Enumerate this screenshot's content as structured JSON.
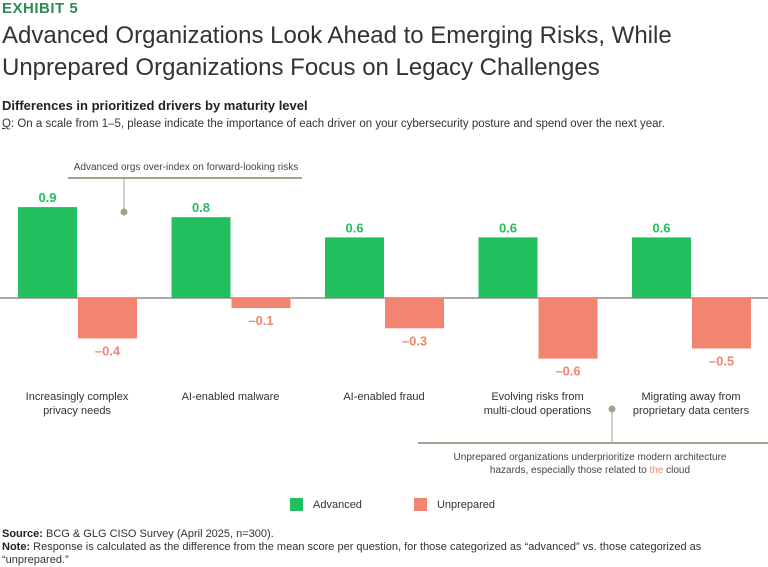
{
  "exhibit": "EXHIBIT 5",
  "title_line1": "Advanced Organizations Look Ahead to Emerging Risks, While",
  "title_line2": "Unprepared Organizations Focus on Legacy Challenges",
  "subtitle": "Differences in prioritized drivers by maturity level",
  "question_prefix": "Q",
  "question_text": ": On a scale from 1–5, please indicate the importance of each driver on your cybersecurity posture and spend over the next year.",
  "annotation_top": "Advanced orgs over-index on forward-looking risks",
  "annotation_bottom_line1": "Unprepared organizations underprioritize modern architecture",
  "annotation_bottom_line2_pre": "hazards, especially those related to ",
  "annotation_bottom_line2_highlight": "the",
  "annotation_bottom_line2_post": " cloud",
  "colors": {
    "advanced": "#22bf5e",
    "unprepared": "#f28572",
    "accent_line": "#a89f8e",
    "exhibit": "#2e8b57"
  },
  "legend": {
    "advanced": "Advanced",
    "unprepared": "Unprepared"
  },
  "footer": {
    "source_label": "Source:",
    "source_text": " BCG & GLG CISO Survey (April 2025, n=300).",
    "note_label": "Note:",
    "note_text": " Response is calculated as the difference from the mean score per question, for those categorized as “advanced” vs. those categorized as “unprepared.”"
  },
  "chart_data": {
    "type": "bar",
    "title": "Differences in prioritized drivers by maturity level",
    "categories": [
      [
        "Increasingly complex",
        "privacy needs"
      ],
      [
        "AI-enabled malware"
      ],
      [
        "AI-enabled fraud"
      ],
      [
        "Evolving risks from",
        "multi-cloud operations"
      ],
      [
        "Migrating away from",
        "proprietary data centers"
      ]
    ],
    "series": [
      {
        "name": "Advanced",
        "values": [
          0.9,
          0.8,
          0.6,
          0.6,
          0.6
        ],
        "labels": [
          "0.9",
          "0.8",
          "0.6",
          "0.6",
          "0.6"
        ]
      },
      {
        "name": "Unprepared",
        "values": [
          -0.4,
          -0.1,
          -0.3,
          -0.6,
          -0.5
        ],
        "labels": [
          "–0.4",
          "–0.1",
          "–0.3",
          "–0.6",
          "–0.5"
        ]
      }
    ],
    "ylim": [
      -0.6,
      0.9
    ],
    "grid": false,
    "legend_position": "bottom-center"
  }
}
